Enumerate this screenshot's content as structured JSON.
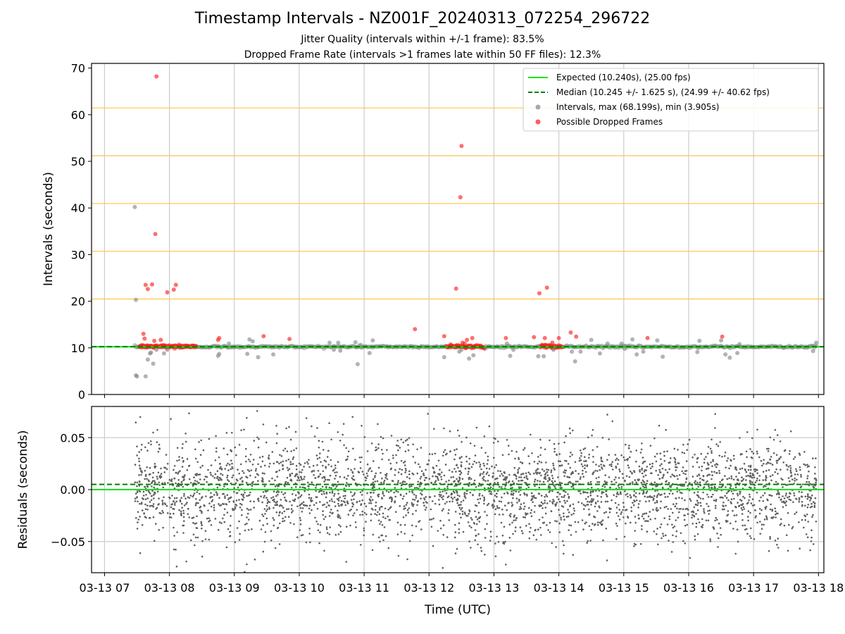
{
  "header": {
    "title": "Timestamp Intervals - NZ001F_20240313_072254_296722",
    "subtitle1": "Jitter Quality (intervals within +/-1 frame): 83.5%",
    "subtitle2": "Dropped Frame Rate (intervals >1 frames late within 50 FF files): 12.3%"
  },
  "colors": {
    "expected": "#00e600",
    "median": "#008000",
    "intervals": "#808080",
    "dropped": "#ff2020",
    "threshold_lines": "#ffc85a",
    "grid": "#cccccc",
    "residuals": "#606060"
  },
  "chart_data": [
    {
      "type": "scatter",
      "panel": "top",
      "ylabel": "Intervals (seconds)",
      "xlim": [
        "2024-03-13T06:48",
        "2024-03-13T18:05"
      ],
      "ylim": [
        0,
        71
      ],
      "yticks": [
        0,
        10,
        20,
        30,
        40,
        50,
        60,
        70
      ],
      "ytick_labels": [
        "0",
        "10",
        "20",
        "30",
        "40",
        "50",
        "60",
        "70"
      ],
      "grid": true,
      "horizontal_reference_lines": [
        10.24,
        20.48,
        30.72,
        40.96,
        51.2,
        61.44,
        71.68
      ],
      "legend_position": "upper right",
      "legend": [
        {
          "label": "Expected (10.240s), (25.00 fps)",
          "kind": "solid-line",
          "color": "#00e600"
        },
        {
          "label": "Median (10.245 +/- 1.625 s), (24.99 +/- 40.62 fps)",
          "kind": "dashed-line",
          "color": "#008000"
        },
        {
          "label": "Intervals, max (68.199s), min (3.905s)",
          "kind": "marker",
          "color": "#999999"
        },
        {
          "label": "Possible Dropped Frames",
          "kind": "marker",
          "color": "#ff4040"
        }
      ],
      "expected": 10.24,
      "median": 10.245,
      "series": [
        {
          "name": "Intervals, max (68.199s), min (3.905s)",
          "x": [
            "07:28",
            "07:29",
            "07:29",
            "07:30",
            "07:38",
            "07:40",
            "07:42",
            "07:43",
            "07:45",
            "07:48",
            "07:55",
            "07:58",
            "08:45",
            "08:46",
            "08:55",
            "09:12",
            "09:14",
            "09:17",
            "09:22",
            "09:36",
            "10:28",
            "10:32",
            "10:36",
            "10:38",
            "10:52",
            "10:54",
            "10:57",
            "11:05",
            "11:08",
            "12:14",
            "12:28",
            "12:30",
            "12:37",
            "12:41",
            "13:12",
            "13:15",
            "13:18",
            "13:41",
            "13:46",
            "13:55",
            "14:12",
            "14:15",
            "14:20",
            "14:30",
            "14:38",
            "14:45",
            "14:58",
            "15:01",
            "15:08",
            "15:12",
            "15:18",
            "15:31",
            "15:36",
            "16:08",
            "16:10",
            "16:30",
            "16:34",
            "16:38",
            "16:45",
            "16:47",
            "17:55",
            "17:58"
          ],
          "y": [
            40.2,
            20.3,
            4.1,
            3.9,
            3.9,
            7.5,
            8.8,
            9.0,
            6.6,
            9.6,
            8.8,
            9.6,
            8.3,
            8.7,
            10.9,
            8.7,
            11.8,
            11.4,
            8.0,
            8.6,
            11.1,
            9.6,
            11.1,
            9.4,
            11.2,
            6.5,
            10.6,
            8.9,
            11.6,
            8.0,
            9.2,
            9.6,
            7.7,
            8.4,
            10.9,
            8.3,
            9.6,
            8.2,
            8.2,
            9.6,
            9.2,
            7.1,
            9.2,
            11.7,
            8.8,
            10.9,
            10.9,
            9.8,
            11.8,
            8.6,
            9.2,
            11.6,
            8.1,
            9.1,
            11.5,
            11.6,
            8.6,
            7.9,
            8.9,
            10.8,
            9.3,
            11.1
          ]
        },
        {
          "name": "Possible Dropped Frames",
          "x": [
            "07:36",
            "07:37",
            "07:38",
            "07:40",
            "07:44",
            "07:46",
            "07:47",
            "07:48",
            "07:52",
            "07:58",
            "08:04",
            "08:06",
            "08:45",
            "08:46",
            "09:27",
            "09:51",
            "11:47",
            "12:14",
            "12:25",
            "12:29",
            "12:30",
            "12:31",
            "12:33",
            "12:35",
            "12:40",
            "13:11",
            "13:37",
            "13:42",
            "13:47",
            "13:49",
            "13:54",
            "14:00",
            "14:11",
            "14:16",
            "15:22",
            "16:31"
          ],
          "y": [
            13.0,
            12.0,
            23.5,
            22.6,
            23.6,
            11.5,
            34.4,
            68.2,
            11.7,
            21.9,
            22.5,
            23.5,
            11.7,
            12.1,
            12.5,
            11.9,
            14.0,
            12.5,
            22.7,
            42.3,
            53.3,
            11.1,
            10.9,
            11.7,
            12.1,
            12.1,
            12.3,
            21.7,
            12.1,
            22.9,
            11.1,
            12.1,
            13.3,
            12.4,
            12.1,
            12.4
          ]
        },
        {
          "name": "Dense interval band",
          "x_range": [
            "07:28",
            "17:58"
          ],
          "y": 10.24
        },
        {
          "name": "Dropped frame clusters",
          "x_ranges": [
            [
              "07:32",
              "08:25"
            ],
            [
              "12:16",
              "12:51"
            ],
            [
              "13:43",
              "14:03"
            ]
          ],
          "y": 10.3
        }
      ]
    },
    {
      "type": "scatter",
      "panel": "bottom",
      "xlabel": "Time (UTC)",
      "ylabel": "Residuals (seconds)",
      "ylim": [
        -0.08,
        0.08
      ],
      "yticks": [
        -0.05,
        0,
        0.05
      ],
      "ytick_labels": [
        "−0.05",
        "0.00",
        "0.05"
      ],
      "xticks": [
        "03-13 07",
        "03-13 08",
        "03-13 09",
        "03-13 10",
        "03-13 11",
        "03-13 12",
        "03-13 13",
        "03-13 14",
        "03-13 15",
        "03-13 16",
        "03-13 17",
        "03-13 18"
      ],
      "grid": true,
      "reference_lines": [
        {
          "value": 0.0,
          "style": "solid",
          "color": "#00e600"
        },
        {
          "value": 0.005,
          "style": "dashed",
          "color": "#008000"
        }
      ],
      "series": [
        {
          "name": "Residuals",
          "x_range": [
            "07:28",
            "17:58"
          ],
          "y_mean": 0.0,
          "y_std": 0.024,
          "y_range": [
            -0.08,
            0.077
          ],
          "point_count": 3400
        }
      ]
    }
  ]
}
